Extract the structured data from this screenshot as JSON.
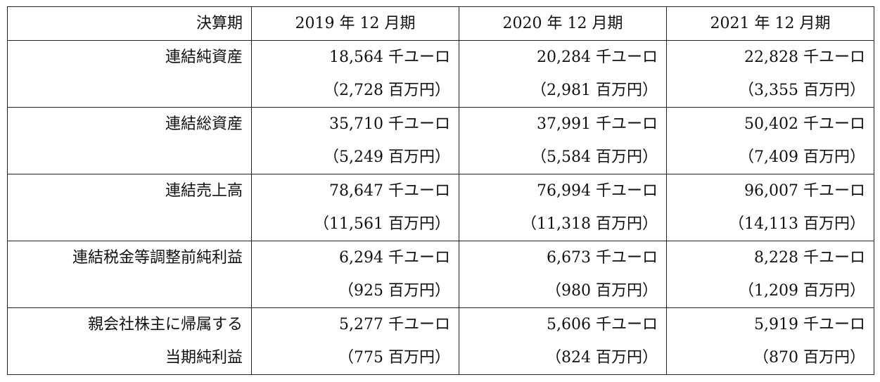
{
  "table": {
    "header": {
      "label": "決算期",
      "periods": [
        "2019 年 12 月期",
        "2020 年 12 月期",
        "2021 年 12 月期"
      ]
    },
    "rows": [
      {
        "label": [
          "連結純資産"
        ],
        "cells": [
          {
            "main": "18,564 千ユーロ",
            "sub": "（2,728 百万円）"
          },
          {
            "main": "20,284 千ユーロ",
            "sub": "（2,981 百万円）"
          },
          {
            "main": "22,828 千ユーロ",
            "sub": "（3,355 百万円）"
          }
        ]
      },
      {
        "label": [
          "連結総資産"
        ],
        "cells": [
          {
            "main": "35,710 千ユーロ",
            "sub": "（5,249 百万円）"
          },
          {
            "main": "37,991 千ユーロ",
            "sub": "（5,584 百万円）"
          },
          {
            "main": "50,402 千ユーロ",
            "sub": "（7,409 百万円）"
          }
        ]
      },
      {
        "label": [
          "連結売上高"
        ],
        "cells": [
          {
            "main": "78,647 千ユーロ",
            "sub": "（11,561 百万円）"
          },
          {
            "main": "76,994 千ユーロ",
            "sub": "（11,318 百万円）"
          },
          {
            "main": "96,007 千ユーロ",
            "sub": "（14,113 百万円）"
          }
        ]
      },
      {
        "label": [
          "連結税金等調整前純利益"
        ],
        "cells": [
          {
            "main": "6,294 千ユーロ",
            "sub": "（925 百万円）"
          },
          {
            "main": "6,673 千ユーロ",
            "sub": "（980 百万円）"
          },
          {
            "main": "8,228 千ユーロ",
            "sub": "（1,209 百万円）"
          }
        ]
      },
      {
        "label": [
          "親会社株主に帰属する",
          "当期純利益"
        ],
        "cells": [
          {
            "main": "5,277 千ユーロ",
            "sub": "（775 百万円）"
          },
          {
            "main": "5,606 千ユーロ",
            "sub": "（824 百万円）"
          },
          {
            "main": "5,919 千ユーロ",
            "sub": "（870 百万円）"
          }
        ]
      }
    ]
  }
}
